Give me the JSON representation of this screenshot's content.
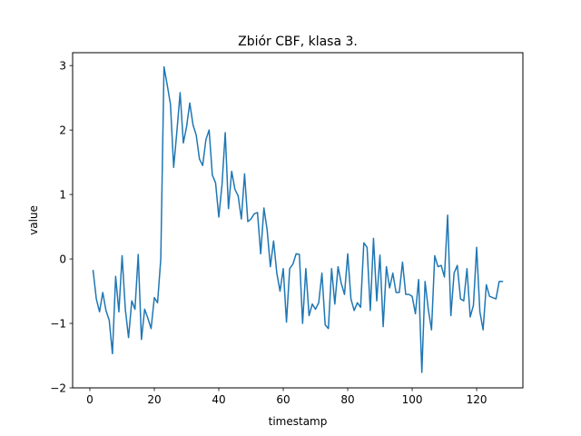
{
  "chart_data": {
    "type": "line",
    "title": "Zbiór CBF, klasa 3.",
    "xlabel": "timestamp",
    "ylabel": "value",
    "xlim": [
      -5.35,
      134.35
    ],
    "ylim": [
      -2.0,
      3.2
    ],
    "xticks": [
      0,
      20,
      40,
      60,
      80,
      100,
      120
    ],
    "yticks": [
      -2,
      -1,
      0,
      1,
      2,
      3
    ],
    "grid": false,
    "line_color": "#1f77b4",
    "series": [
      {
        "x": [
          1,
          2,
          3,
          4,
          5,
          6,
          7,
          8,
          9,
          10,
          11,
          12,
          13,
          14,
          15,
          16,
          17,
          18,
          19,
          20,
          21,
          22,
          23,
          24,
          25,
          26,
          27,
          28,
          29,
          30,
          31,
          32,
          33,
          34,
          35,
          36,
          37,
          38,
          39,
          40,
          41,
          42,
          43,
          44,
          45,
          46,
          47,
          48,
          49,
          50,
          51,
          52,
          53,
          54,
          55,
          56,
          57,
          58,
          59,
          60,
          61,
          62,
          63,
          64,
          65,
          66,
          67,
          68,
          69,
          70,
          71,
          72,
          73,
          74,
          75,
          76,
          77,
          78,
          79,
          80,
          81,
          82,
          83,
          84,
          85,
          86,
          87,
          88,
          89,
          90,
          91,
          92,
          93,
          94,
          95,
          96,
          97,
          98,
          99,
          100,
          101,
          102,
          103,
          104,
          105,
          106,
          107,
          108,
          109,
          110,
          111,
          112,
          113,
          114,
          115,
          116,
          117,
          118,
          119,
          120,
          121,
          122,
          123,
          124,
          125,
          126,
          127,
          128
        ],
        "values": [
          -0.18,
          -0.62,
          -0.82,
          -0.52,
          -0.8,
          -0.95,
          -1.47,
          -0.27,
          -0.82,
          0.05,
          -0.78,
          -1.22,
          -0.65,
          -0.78,
          0.07,
          -1.25,
          -0.78,
          -0.92,
          -1.08,
          -0.6,
          -0.68,
          0.0,
          2.98,
          2.7,
          2.4,
          1.42,
          1.98,
          2.58,
          1.8,
          2.05,
          2.42,
          2.08,
          1.92,
          1.55,
          1.45,
          1.85,
          2.0,
          1.3,
          1.18,
          0.65,
          1.15,
          1.96,
          0.78,
          1.36,
          1.08,
          0.98,
          0.62,
          1.32,
          0.58,
          0.62,
          0.7,
          0.72,
          0.08,
          0.79,
          0.45,
          -0.12,
          0.28,
          -0.22,
          -0.5,
          -0.15,
          -0.98,
          -0.15,
          -0.08,
          0.08,
          0.07,
          -1.0,
          -0.15,
          -0.88,
          -0.7,
          -0.78,
          -0.68,
          -0.22,
          -1.02,
          -1.08,
          -0.15,
          -0.7,
          -0.12,
          -0.38,
          -0.55,
          0.08,
          -0.62,
          -0.8,
          -0.68,
          -0.75,
          0.25,
          0.18,
          -0.8,
          0.32,
          -0.65,
          0.06,
          -1.05,
          -0.12,
          -0.45,
          -0.22,
          -0.52,
          -0.52,
          -0.05,
          -0.55,
          -0.55,
          -0.58,
          -0.85,
          -0.32,
          -1.76,
          -0.35,
          -0.78,
          -1.1,
          0.05,
          -0.12,
          -0.1,
          -0.28,
          0.68,
          -0.88,
          -0.22,
          -0.1,
          -0.62,
          -0.65,
          -0.15,
          -0.9,
          -0.72,
          0.18,
          -0.82,
          -1.1,
          -0.4,
          -0.58,
          -0.6,
          -0.62,
          -0.35,
          -0.35
        ]
      }
    ]
  }
}
